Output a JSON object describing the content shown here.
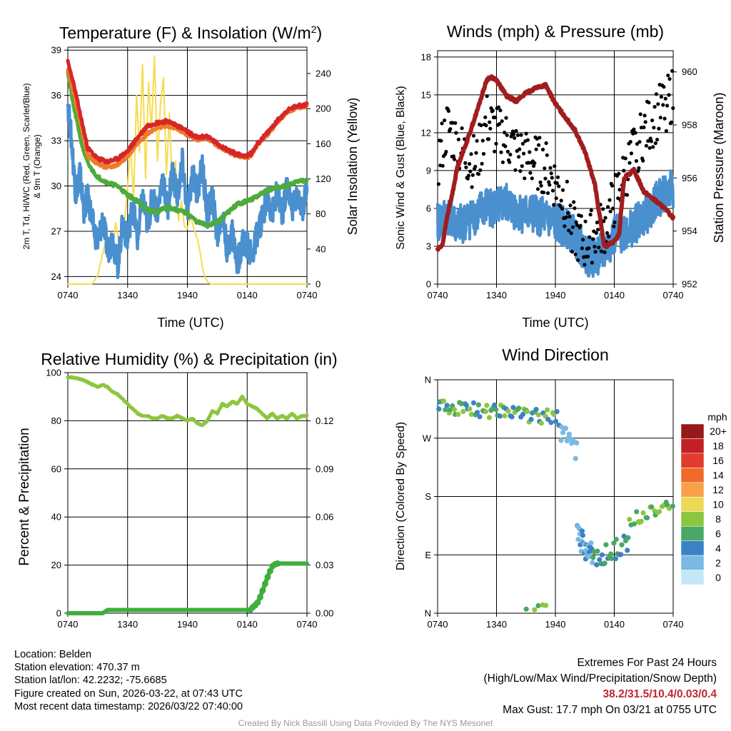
{
  "figure": {
    "info": {
      "location": "Location: Belden",
      "elevation": "Station elevation: 470.37 m",
      "latlon": "Station lat/lon: 42.2232; -75.6685",
      "created": "Figure created on Sun, 2026-03-22, at 07:43 UTC",
      "recent": "Most recent data timestamp: 2026/03/22 07:40:00"
    },
    "extremes": {
      "title": "Extremes For Past 24 Hours",
      "subtitle": "(High/Low/Max Wind/Precipitation/Snow Depth)",
      "values": "38.2/31.5/10.4/0.03/0.4",
      "gust": "Max Gust: 17.7 mph On 03/21 at 0755 UTC"
    },
    "credit": "Created By Nick Bassill Using Data Provided By The NYS Mesonet",
    "colors": {
      "red": "#d62728",
      "orange": "#f07a2a",
      "green": "#4dab3c",
      "blue": "#4a90cf",
      "yellow": "#f7dc4f",
      "maroon": "#a11d1d",
      "lightgreen": "#8cc63f",
      "precip": "#3fae3f"
    }
  },
  "chart_data": [
    {
      "type": "line",
      "title": "Temperature (F) & Insolation (W/m2)",
      "title_main": "Temperature (F) & Insolation (W/m",
      "title_sup": "2",
      "title_end": ")",
      "xlabel": "Time (UTC)",
      "ylabel_line1": "2m T, Td, HI/WC (Red, Green, Scarlet/Blue)",
      "ylabel_line2": "& 9m T (Orange)",
      "ylabel_right": "Solar Insolation (Yellow)",
      "x_ticks": [
        "0740",
        "1340",
        "1940",
        "0140",
        "0740"
      ],
      "x_hours": [
        0,
        24
      ],
      "ylim": [
        23.5,
        39.2
      ],
      "y_ticks": [
        24,
        27,
        30,
        33,
        36,
        39
      ],
      "y2lim": [
        0,
        270
      ],
      "y2_ticks": [
        0,
        40,
        80,
        120,
        160,
        200,
        240
      ],
      "series": [
        {
          "name": "2m T",
          "color": "red",
          "x": [
            0,
            0.5,
            1,
            1.5,
            2,
            3,
            4,
            5,
            6,
            7,
            8,
            9,
            10,
            11,
            12,
            13,
            14,
            15,
            16,
            17,
            18,
            18.5,
            19,
            20,
            21,
            22,
            23,
            24
          ],
          "values": [
            38.2,
            37,
            35.5,
            34,
            32.5,
            31.8,
            31.6,
            31.8,
            32.3,
            33.2,
            34,
            34.2,
            34.3,
            34,
            33.6,
            33.2,
            33.3,
            32.8,
            32.4,
            32.1,
            32.0,
            32.2,
            32.8,
            33.5,
            34.3,
            35.0,
            35.3,
            35.4
          ]
        },
        {
          "name": "9m T",
          "color": "orange",
          "x": [
            0,
            0.5,
            1,
            1.5,
            2,
            3,
            4,
            5,
            6,
            7,
            8,
            9,
            10,
            11,
            12,
            13,
            14,
            15,
            16,
            17,
            18,
            18.5,
            19,
            20,
            21,
            22,
            23,
            24
          ],
          "values": [
            37.8,
            36.4,
            35,
            33.5,
            32,
            31.5,
            31.2,
            31.4,
            32,
            32.8,
            33.5,
            33.9,
            34.0,
            33.8,
            33.4,
            33.1,
            33.2,
            32.7,
            32.3,
            32.0,
            31.9,
            32.1,
            32.7,
            33.4,
            34.2,
            34.9,
            35.2,
            35.3
          ]
        },
        {
          "name": "2m Td",
          "color": "green",
          "x": [
            0,
            0.5,
            1,
            1.5,
            2,
            2.5,
            3,
            4,
            5,
            6,
            7,
            8,
            9,
            10,
            11,
            12,
            13,
            14,
            15,
            16,
            17,
            18,
            19,
            20,
            21,
            22,
            23,
            24
          ],
          "values": [
            37.6,
            35.5,
            34,
            32.5,
            31.5,
            31,
            30.6,
            30.2,
            30,
            29.4,
            29,
            28.4,
            28.3,
            28.6,
            28.4,
            28.2,
            27.6,
            27.4,
            27.6,
            28.2,
            28.8,
            29.0,
            29.3,
            29.7,
            29.9,
            30.0,
            30.3,
            30.4
          ]
        },
        {
          "name": "HI/WC",
          "color": "blue",
          "x": [
            0,
            0.4,
            0.8,
            1.2,
            1.6,
            2,
            2.5,
            3,
            3.5,
            4,
            4.5,
            5,
            5.5,
            6,
            6.5,
            7,
            7.5,
            8,
            8.5,
            9,
            9.5,
            10,
            10.5,
            11,
            11.5,
            12,
            12.5,
            13,
            13.5,
            14,
            14.5,
            15,
            15.5,
            16,
            16.5,
            17,
            17.5,
            18,
            18.5,
            19,
            19.5,
            20,
            20.5,
            21,
            21.5,
            22,
            22.5,
            23,
            23.5,
            24
          ],
          "values": [
            35.5,
            32.8,
            29.4,
            31,
            28.4,
            29.3,
            27.5,
            26.2,
            27.8,
            25.7,
            26.5,
            24.7,
            27.5,
            26.4,
            28.8,
            26.5,
            29.2,
            27.4,
            29.3,
            28.3,
            30.5,
            28.4,
            31.1,
            29.2,
            31.6,
            28.2,
            30.8,
            29.6,
            31.4,
            27.9,
            29.5,
            26.5,
            28.3,
            25.7,
            27.1,
            24.8,
            26.3,
            26.1,
            25.2,
            26.9,
            27.8,
            29.3,
            28.2,
            29.6,
            27.9,
            30.2,
            28.5,
            29.5,
            28.3,
            30.1
          ],
          "noise": 0.9
        }
      ],
      "insolation": {
        "name": "Solar Insolation",
        "color": "yellow",
        "x": [
          0,
          2.4,
          3,
          3.6,
          4,
          4.4,
          4.8,
          5.2,
          5.6,
          6,
          6.3,
          6.6,
          6.9,
          7.2,
          7.5,
          7.8,
          8.1,
          8.4,
          8.7,
          9.0,
          9.3,
          9.6,
          9.9,
          10.2,
          10.5,
          10.8,
          11.1,
          11.4,
          11.7,
          12,
          12.3,
          12.6,
          12.9,
          13.2,
          13.5,
          13.8,
          14.1,
          14.4,
          14.8,
          15.1,
          24
        ],
        "values": [
          0,
          0,
          10,
          40,
          55,
          30,
          70,
          45,
          60,
          110,
          160,
          95,
          215,
          150,
          250,
          120,
          230,
          175,
          260,
          140,
          205,
          235,
          125,
          195,
          105,
          140,
          72,
          95,
          66,
          63,
          78,
          65,
          55,
          42,
          20,
          6,
          2,
          0,
          0,
          0,
          0
        ]
      }
    },
    {
      "type": "line",
      "title": "Winds (mph) & Pressure (mb)",
      "xlabel": "Time (UTC)",
      "ylabel": "Sonic Wind & Gust (Blue, Black)",
      "ylabel_right": "Station Pressure (Maroon)",
      "x_ticks": [
        "0740",
        "1340",
        "1940",
        "0140",
        "0740"
      ],
      "x_hours": [
        0,
        24
      ],
      "ylim": [
        0,
        18.5
      ],
      "y_ticks": [
        0,
        3,
        6,
        9,
        12,
        15,
        18
      ],
      "y2lim": [
        952,
        960.8
      ],
      "y2_ticks": [
        952,
        954,
        956,
        958,
        960
      ],
      "series": [
        {
          "name": "Sonic Wind",
          "color": "blue",
          "x": [
            0,
            1,
            2,
            3,
            4,
            5,
            6,
            7,
            8,
            9,
            10,
            11,
            12,
            13,
            14,
            15,
            15.5,
            16,
            17,
            18,
            19,
            20,
            21,
            22,
            23,
            24
          ],
          "values": [
            4.8,
            5.5,
            4.6,
            5.0,
            5.6,
            6.2,
            6.0,
            6.4,
            5.8,
            5.6,
            5.5,
            5.2,
            4.8,
            4.5,
            3.8,
            2.6,
            2.0,
            2.2,
            2.5,
            3.8,
            4.2,
            4.6,
            5.2,
            6.4,
            7.2,
            7.5
          ],
          "noise": 1.6
        },
        {
          "name": "Station Pressure",
          "color": "maroon",
          "x": [
            0,
            0.5,
            1,
            1.5,
            2,
            3,
            4,
            5,
            5.5,
            6,
            7,
            8,
            9,
            10,
            11,
            12,
            13,
            14,
            15,
            16,
            17,
            18,
            18.5,
            19,
            20,
            21,
            22,
            23,
            24
          ],
          "values": [
            953.3,
            953.5,
            954.6,
            955.4,
            956.4,
            957.4,
            958.5,
            959.7,
            959.8,
            959.7,
            959.1,
            958.9,
            959.2,
            959.4,
            959.5,
            958.8,
            958.3,
            957.8,
            957.0,
            955.8,
            953.4,
            953.6,
            953.9,
            956.0,
            956.3,
            955.5,
            955.2,
            954.9,
            954.5
          ]
        }
      ],
      "gusts": {
        "name": "Gust",
        "color": "black",
        "x": [
          0,
          1,
          2,
          3,
          4,
          5,
          6,
          7,
          8,
          9,
          10,
          11,
          12,
          13,
          14,
          15,
          16,
          17,
          18,
          19,
          20,
          21,
          22,
          23,
          24
        ],
        "values": [
          9.5,
          12.5,
          11,
          10,
          9.6,
          13,
          12,
          11.5,
          10.5,
          10,
          9.6,
          9.2,
          8,
          6.5,
          4,
          3.2,
          4,
          4.5,
          6.5,
          8.5,
          10.5,
          12,
          13,
          14,
          15
        ],
        "noise": 2.2
      }
    },
    {
      "type": "line",
      "title": "Relative Humidity (%) & Precipitation (in)",
      "ylabel": "Percent & Precipitation",
      "x_ticks": [
        "0740",
        "1340",
        "1940",
        "0140",
        "0740"
      ],
      "x_hours": [
        0,
        24
      ],
      "ylim": [
        0,
        100
      ],
      "y_ticks": [
        0,
        20,
        40,
        60,
        80,
        100
      ],
      "y2lim": [
        0,
        0.15
      ],
      "y2_ticks": [
        "0.00",
        "0.03",
        "0.06",
        "0.09",
        "0.12"
      ],
      "series": [
        {
          "name": "Relative Humidity",
          "color": "lightgreen",
          "x": [
            0,
            0.5,
            1,
            1.5,
            2,
            3,
            3.5,
            4,
            4.5,
            5,
            5.5,
            6,
            6.5,
            7,
            7.5,
            8,
            8.5,
            9,
            9.5,
            10,
            10.5,
            11,
            11.5,
            12,
            12.5,
            13,
            13.5,
            14,
            14.5,
            15,
            15.5,
            16,
            16.5,
            17,
            17.5,
            18,
            18.5,
            19,
            19.5,
            20,
            20.5,
            21,
            21.5,
            22,
            22.5,
            23,
            23.5,
            24
          ],
          "values": [
            98,
            98,
            97.5,
            97,
            96,
            94,
            95,
            94,
            92,
            91,
            89,
            87,
            85,
            83,
            82,
            82,
            81,
            81,
            82,
            81,
            81,
            82,
            81,
            80,
            81,
            79,
            78,
            80,
            84,
            83,
            87,
            86,
            88,
            87,
            90,
            87,
            86,
            85,
            83,
            81,
            83,
            81,
            82,
            81,
            83,
            81,
            82,
            82
          ]
        },
        {
          "name": "Precipitation",
          "color": "precip",
          "x": [
            0,
            3.5,
            4,
            18.3,
            18.6,
            19,
            19.3,
            19.6,
            19.9,
            20.2,
            20.6,
            21,
            21.5,
            22,
            24
          ],
          "values": [
            0,
            0,
            0.002,
            0.002,
            0.004,
            0.006,
            0.01,
            0.015,
            0.02,
            0.025,
            0.03,
            0.031,
            0.031,
            0.031,
            0.031
          ]
        }
      ]
    },
    {
      "type": "scatter",
      "title": "Wind Direction",
      "ylabel": "Direction (Colored By Speed)",
      "x_ticks": [
        "0740",
        "1340",
        "1940",
        "0140",
        "0740"
      ],
      "x_hours": [
        0,
        24
      ],
      "ylim": [
        0,
        360
      ],
      "y_ticks": [
        "N",
        "E",
        "S",
        "W",
        "N"
      ],
      "y_tick_values": [
        0,
        90,
        180,
        270,
        360
      ],
      "groups": [
        {
          "x": [
            0,
            12.5
          ],
          "dir": [
            320,
            300
          ],
          "spread": 12,
          "count": 70,
          "speed": [
            3,
            9
          ],
          "seed": 11
        },
        {
          "x": [
            12.5,
            14.2
          ],
          "dir": [
            280,
            250
          ],
          "spread": 15,
          "count": 14,
          "speed": [
            1,
            3
          ],
          "seed": 12
        },
        {
          "x": [
            14.2,
            15.8
          ],
          "dir": [
            120,
            90
          ],
          "spread": 20,
          "count": 25,
          "speed": [
            1,
            5
          ],
          "seed": 13
        },
        {
          "x": [
            15.8,
            19.5
          ],
          "dir": [
            80,
            110
          ],
          "spread": 15,
          "count": 25,
          "speed": [
            3,
            7
          ],
          "seed": 14
        },
        {
          "x": [
            19.5,
            24
          ],
          "dir": [
            145,
            165
          ],
          "spread": 10,
          "count": 22,
          "speed": [
            5,
            9
          ],
          "seed": 15
        },
        {
          "x": [
            9,
            11.5
          ],
          "dir": [
            8,
            10
          ],
          "spread": 4,
          "count": 5,
          "speed": [
            6,
            8
          ],
          "seed": 16
        }
      ],
      "colorbar": {
        "title": "mph",
        "labels": [
          "20+",
          "18",
          "16",
          "14",
          "12",
          "10",
          "8",
          "6",
          "4",
          "2",
          "0"
        ],
        "colors": [
          "#96191b",
          "#c22025",
          "#e03b2c",
          "#f06a2a",
          "#f7a24b",
          "#ecd956",
          "#8cc63f",
          "#4aa866",
          "#3a82c4",
          "#7ab9e3",
          "#c3e7f7"
        ]
      }
    }
  ]
}
